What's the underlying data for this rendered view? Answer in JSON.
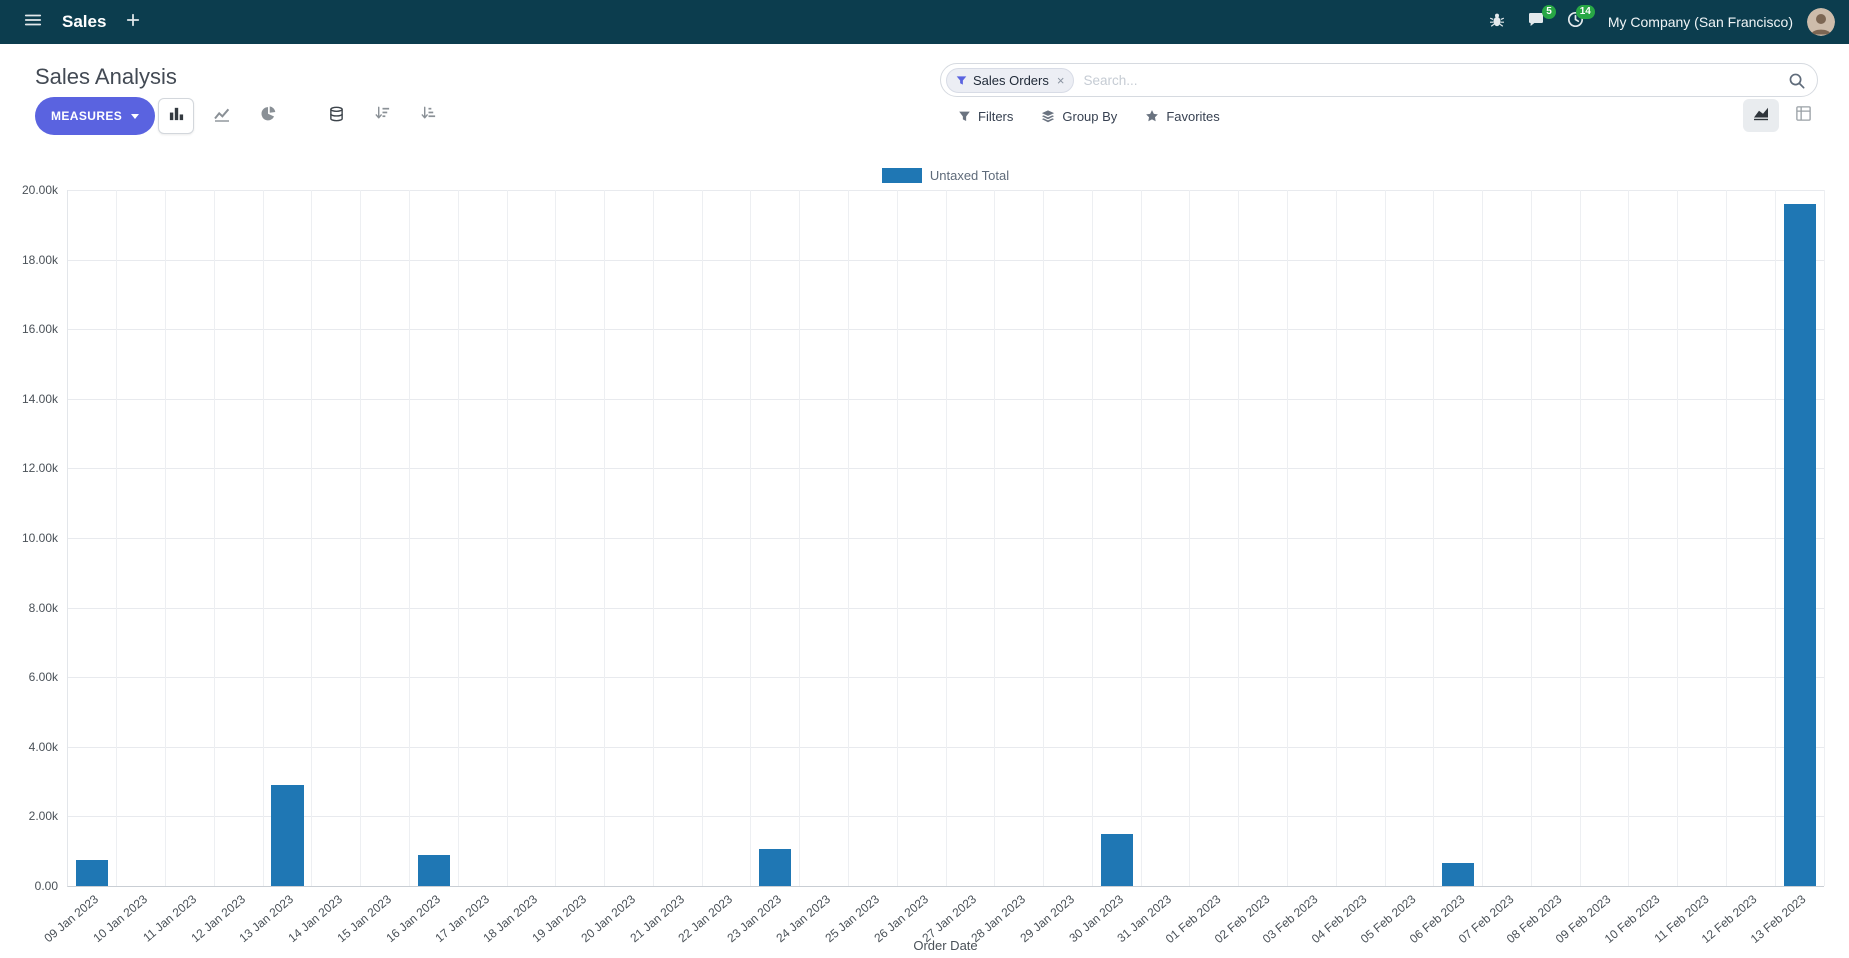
{
  "colors": {
    "navbar_bg": "#0c3d4e",
    "accent": "#5a63e0",
    "bar": "#1f77b4",
    "badge_green": "#28a745"
  },
  "navbar": {
    "app_name": "Sales",
    "messages_badge": "5",
    "activities_badge": "14",
    "company": "My Company (San Francisco)"
  },
  "control_panel": {
    "title": "Sales Analysis",
    "measures_label": "MEASURES",
    "filters_label": "Filters",
    "group_by_label": "Group By",
    "favorites_label": "Favorites",
    "search": {
      "facet_label": "Sales Orders",
      "facet_remove": "×",
      "placeholder": "Search..."
    }
  },
  "chart_data": {
    "type": "bar",
    "title": "",
    "legend": [
      {
        "label": "Untaxed Total",
        "color": "#1f77b4"
      }
    ],
    "xlabel": "Order Date",
    "ylabel": "",
    "ylim": [
      0,
      20000
    ],
    "ytick_step": 2000,
    "ytick_labels": [
      "0.00",
      "2.00k",
      "4.00k",
      "6.00k",
      "8.00k",
      "10.00k",
      "12.00k",
      "14.00k",
      "16.00k",
      "18.00k",
      "20.00k"
    ],
    "grid": true,
    "legend_position": "top-center",
    "categories": [
      "09 Jan 2023",
      "10 Jan 2023",
      "11 Jan 2023",
      "12 Jan 2023",
      "13 Jan 2023",
      "14 Jan 2023",
      "15 Jan 2023",
      "16 Jan 2023",
      "17 Jan 2023",
      "18 Jan 2023",
      "19 Jan 2023",
      "20 Jan 2023",
      "21 Jan 2023",
      "22 Jan 2023",
      "23 Jan 2023",
      "24 Jan 2023",
      "25 Jan 2023",
      "26 Jan 2023",
      "27 Jan 2023",
      "28 Jan 2023",
      "29 Jan 2023",
      "30 Jan 2023",
      "31 Jan 2023",
      "01 Feb 2023",
      "02 Feb 2023",
      "03 Feb 2023",
      "04 Feb 2023",
      "05 Feb 2023",
      "06 Feb 2023",
      "07 Feb 2023",
      "08 Feb 2023",
      "09 Feb 2023",
      "10 Feb 2023",
      "11 Feb 2023",
      "12 Feb 2023",
      "13 Feb 2023"
    ],
    "values": [
      750,
      0,
      0,
      0,
      2900,
      0,
      0,
      900,
      0,
      0,
      0,
      0,
      0,
      0,
      1050,
      0,
      0,
      0,
      0,
      0,
      0,
      1500,
      0,
      0,
      0,
      0,
      0,
      0,
      650,
      0,
      0,
      0,
      0,
      0,
      0,
      19600
    ]
  }
}
